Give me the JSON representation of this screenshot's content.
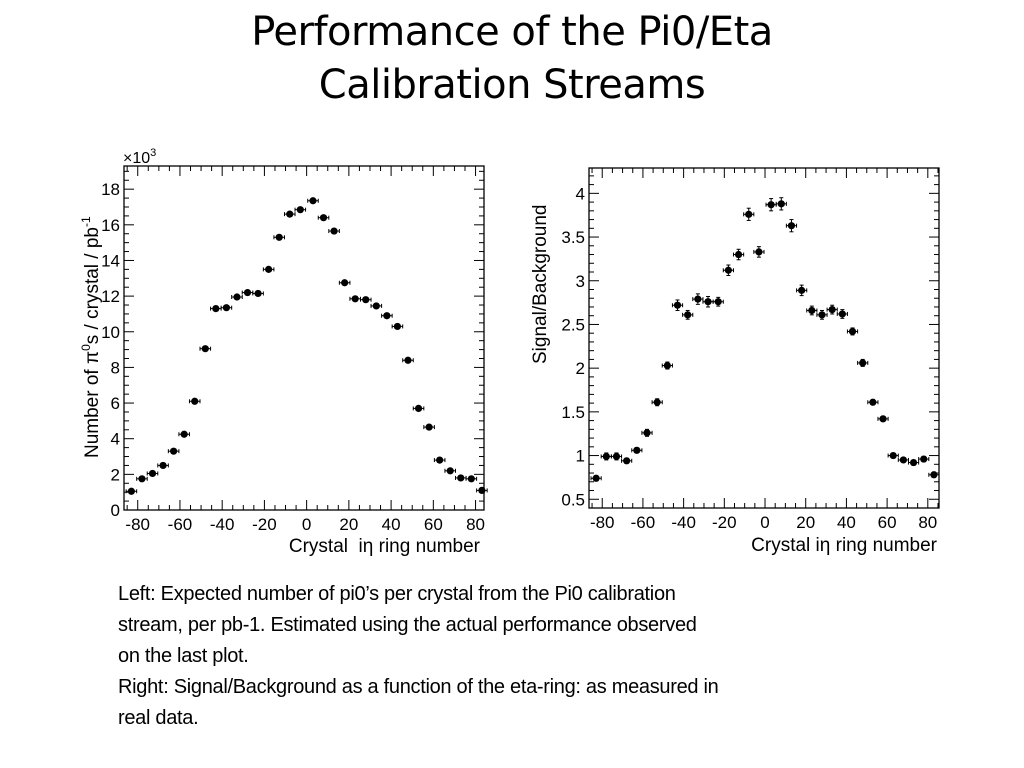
{
  "slide": {
    "title_line1": "Performance of the Pi0/Eta",
    "title_line2": "Calibration Streams"
  },
  "caption": {
    "line1": "Left: Expected number of pi0’s per crystal from the Pi0 calibration",
    "line2": "stream, per pb-1. Estimated using the actual performance observed",
    "line3": "on the last plot.",
    "line4": "Right: Signal/Background as a function of the eta-ring: as measured in",
    "line5": "real data."
  },
  "colors": {
    "marker": "#000000",
    "axis": "#000000",
    "background": "#ffffff"
  },
  "chart_data": [
    {
      "type": "scatter",
      "title": "",
      "xlabel": "Crystal  iη ring number",
      "ylabel": "Number of π0s / crystal / pb-1",
      "ylabel_parts": {
        "pre": "Number of π",
        "sup1": "0",
        "mid": "s / crystal / pb",
        "sup2": "-1"
      },
      "y_multiplier_label": {
        "base": "×10",
        "exp": "3"
      },
      "xlim": [
        -86.5,
        84
      ],
      "ylim": [
        0,
        19.3
      ],
      "x_ticks": [
        -80,
        -60,
        -40,
        -20,
        0,
        20,
        40,
        60,
        80
      ],
      "x_tick_labels": [
        "-80",
        "-60",
        "-40",
        "-20",
        "0",
        "20",
        "40",
        "60",
        "80"
      ],
      "y_ticks": [
        0,
        2,
        4,
        6,
        8,
        10,
        12,
        14,
        16,
        18
      ],
      "y_tick_labels": [
        "0",
        "2",
        "4",
        "6",
        "8",
        "10",
        "12",
        "14",
        "16",
        "18"
      ],
      "grid": false,
      "x": [
        -83,
        -78,
        -73,
        -68,
        -63,
        -58,
        -53,
        -48,
        -43,
        -38,
        -33,
        -28,
        -23,
        -18,
        -13,
        -8,
        -3,
        3,
        8,
        13,
        18,
        23,
        28,
        33,
        38,
        43,
        48,
        53,
        58,
        63,
        68,
        73,
        78,
        83
      ],
      "values": [
        1.05,
        1.75,
        2.05,
        2.5,
        3.3,
        4.25,
        6.1,
        9.05,
        11.3,
        11.35,
        11.95,
        12.2,
        12.15,
        13.5,
        15.3,
        16.6,
        16.85,
        17.35,
        16.4,
        15.65,
        12.75,
        11.85,
        11.8,
        11.45,
        10.9,
        10.3,
        8.4,
        5.7,
        4.65,
        2.8,
        2.2,
        1.8,
        1.75,
        1.1
      ],
      "x_err": 2.5,
      "y_err": 0.12
    },
    {
      "type": "scatter",
      "title": "",
      "xlabel": "Crystal iη ring number",
      "ylabel": "Signal/Background",
      "xlim": [
        -86.5,
        85.5
      ],
      "ylim": [
        0.4,
        4.29
      ],
      "x_ticks": [
        -80,
        -60,
        -40,
        -20,
        0,
        20,
        40,
        60,
        80
      ],
      "x_tick_labels": [
        "-80",
        "-60",
        "-40",
        "-20",
        "0",
        "20",
        "40",
        "60",
        "80"
      ],
      "y_ticks": [
        0.5,
        1,
        1.5,
        2,
        2.5,
        3,
        3.5,
        4
      ],
      "y_tick_labels": [
        "0.5",
        "1",
        "1.5",
        "2",
        "2.5",
        "3",
        "3.5",
        "4"
      ],
      "grid": false,
      "x": [
        -83,
        -78,
        -73,
        -68,
        -63,
        -58,
        -53,
        -48,
        -43,
        -38,
        -33,
        -28,
        -23,
        -18,
        -13,
        -8,
        -3,
        3,
        8,
        13,
        18,
        23,
        28,
        33,
        38,
        43,
        48,
        53,
        58,
        63,
        68,
        73,
        78,
        83
      ],
      "values": [
        0.74,
        0.99,
        0.99,
        0.94,
        1.06,
        1.26,
        1.61,
        2.03,
        2.72,
        2.61,
        2.79,
        2.76,
        2.76,
        3.12,
        3.3,
        3.76,
        3.33,
        3.87,
        3.88,
        3.63,
        2.89,
        2.66,
        2.61,
        2.67,
        2.62,
        2.42,
        2.06,
        1.61,
        1.42,
        1.0,
        0.95,
        0.92,
        0.96,
        0.78
      ],
      "y_err": [
        0.03,
        0.04,
        0.04,
        0.03,
        0.03,
        0.04,
        0.04,
        0.04,
        0.06,
        0.05,
        0.06,
        0.06,
        0.05,
        0.06,
        0.06,
        0.07,
        0.06,
        0.07,
        0.07,
        0.07,
        0.06,
        0.05,
        0.05,
        0.05,
        0.05,
        0.04,
        0.04,
        0.03,
        0.03,
        0.02,
        0.02,
        0.03,
        0.03,
        0.03
      ],
      "x_err": 2.5
    }
  ]
}
